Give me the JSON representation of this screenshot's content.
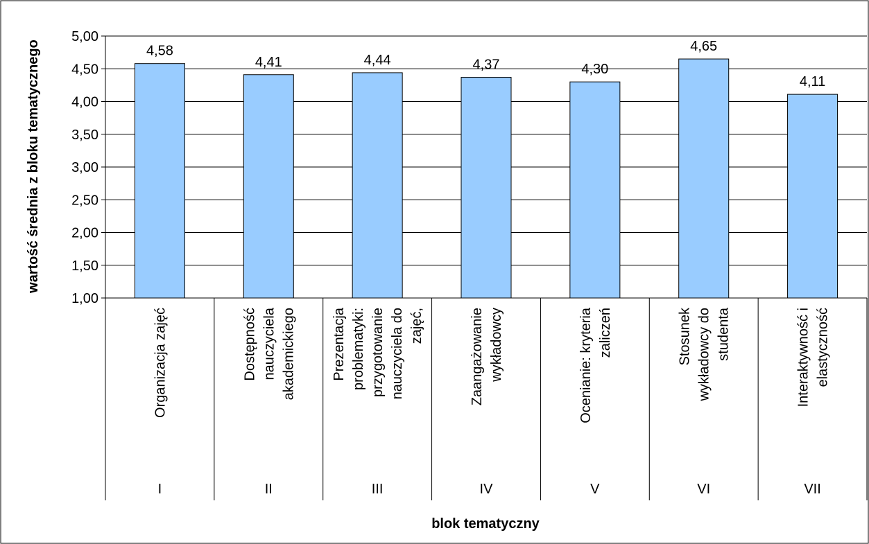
{
  "chart_data": {
    "type": "bar",
    "title": "",
    "xlabel": "blok tematyczny",
    "ylabel": "wartość średnia z bloku tematycznego",
    "ylim": [
      1.0,
      5.0
    ],
    "ytick_step": 0.5,
    "yticks": [
      "1,00",
      "1,50",
      "2,00",
      "2,50",
      "3,00",
      "3,50",
      "4,00",
      "4,50",
      "5,00"
    ],
    "grid": true,
    "legend": "none",
    "bar_color": "#99ccff",
    "bar_stroke": "#000000",
    "categories": [
      {
        "roman": "I",
        "label": [
          "Organizacja zajęć"
        ]
      },
      {
        "roman": "II",
        "label": [
          "Dostępność",
          "nauczyciela",
          "akademickiego"
        ]
      },
      {
        "roman": "III",
        "label": [
          "Prezentacja",
          "problematyki:",
          "przygotowanie",
          "nauczyciela do",
          "zajęć,"
        ]
      },
      {
        "roman": "IV",
        "label": [
          "Zaangażowanie",
          "wykładowcy"
        ]
      },
      {
        "roman": "V",
        "label": [
          "Ocenianie: kryteria",
          "zaliczeń"
        ]
      },
      {
        "roman": "VI",
        "label": [
          "Stosunek",
          "wykładowcy do",
          "studenta"
        ]
      },
      {
        "roman": "VII",
        "label": [
          "Interaktywność i",
          "elastyczność"
        ]
      }
    ],
    "values": [
      4.58,
      4.41,
      4.44,
      4.37,
      4.3,
      4.65,
      4.11
    ],
    "data_labels": [
      "4,58",
      "4,41",
      "4,44",
      "4,37",
      "4,30",
      "4,65",
      "4,11"
    ]
  }
}
